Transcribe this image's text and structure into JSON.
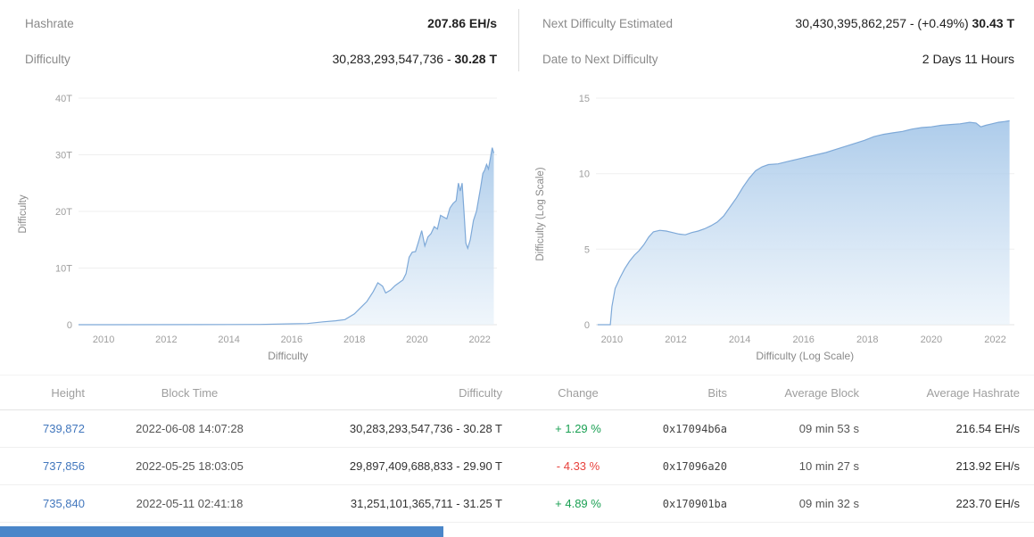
{
  "stats": {
    "hashrate": {
      "label": "Hashrate",
      "value": "207.86 EH/s"
    },
    "difficulty": {
      "label": "Difficulty",
      "value_main": "30,283,293,547,736 - ",
      "value_bold": "30.28 T"
    },
    "next_difficulty": {
      "label": "Next Difficulty Estimated",
      "value_main": "30,430,395,862,257 - (+0.49%) ",
      "value_bold": "30.43 T"
    },
    "date_to_next": {
      "label": "Date to Next Difficulty",
      "value": "2 Days 11 Hours"
    }
  },
  "colors": {
    "link_blue": "#4277bd",
    "positive": "#1aa053",
    "negative": "#e8413c",
    "chart_line": "#7ea9d8",
    "chart_fill_top": "#9fc3e7",
    "chart_fill_bottom": "#e9f2fa",
    "scrollbar_thumb": "#4a86c9"
  },
  "chart_data": [
    {
      "type": "area",
      "title": "",
      "xlabel": "Difficulty",
      "ylabel": "Difficulty",
      "xlim": [
        2009.2,
        2022.55
      ],
      "ylim": [
        0,
        40
      ],
      "x_ticks": [
        2010,
        2012,
        2014,
        2016,
        2018,
        2020,
        2022
      ],
      "y_ticks": [
        {
          "v": 0,
          "label": "0"
        },
        {
          "v": 10,
          "label": "10T"
        },
        {
          "v": 20,
          "label": "20T"
        },
        {
          "v": 30,
          "label": "30T"
        },
        {
          "v": 40,
          "label": "40T"
        }
      ],
      "x": [
        2009.2,
        2013,
        2015,
        2016,
        2016.5,
        2017,
        2017.4,
        2017.7,
        2018.0,
        2018.2,
        2018.4,
        2018.6,
        2018.75,
        2018.9,
        2019.0,
        2019.15,
        2019.3,
        2019.45,
        2019.55,
        2019.65,
        2019.75,
        2019.85,
        2019.95,
        2020.05,
        2020.15,
        2020.25,
        2020.35,
        2020.45,
        2020.55,
        2020.65,
        2020.75,
        2020.85,
        2020.95,
        2021.05,
        2021.15,
        2021.25,
        2021.32,
        2021.38,
        2021.44,
        2021.5,
        2021.56,
        2021.62,
        2021.7,
        2021.8,
        2021.9,
        2021.97,
        2022.03,
        2022.1,
        2022.16,
        2022.22,
        2022.28,
        2022.34,
        2022.4,
        2022.45
      ],
      "y": [
        0,
        0.01,
        0.05,
        0.15,
        0.2,
        0.5,
        0.7,
        0.9,
        1.9,
        3.0,
        4.1,
        5.8,
        7.4,
        6.8,
        5.6,
        6.1,
        6.9,
        7.5,
        7.9,
        9.0,
        11.9,
        12.8,
        12.9,
        14.7,
        16.6,
        13.9,
        15.5,
        16.1,
        17.3,
        16.9,
        19.3,
        19.0,
        18.7,
        20.6,
        21.4,
        21.9,
        25.0,
        23.6,
        25.0,
        19.9,
        14.4,
        13.5,
        15.0,
        18.4,
        20.1,
        22.3,
        24.2,
        26.7,
        27.3,
        28.3,
        27.5,
        29.3,
        31.25,
        30.28
      ]
    },
    {
      "type": "area",
      "title": "",
      "xlabel": "Difficulty (Log Scale)",
      "ylabel": "Difficulty (Log Scale)",
      "xlim": [
        2009.5,
        2022.6
      ],
      "ylim": [
        0,
        15
      ],
      "x_ticks": [
        2010,
        2012,
        2014,
        2016,
        2018,
        2020,
        2022
      ],
      "y_ticks": [
        {
          "v": 0,
          "label": "0"
        },
        {
          "v": 5,
          "label": "5"
        },
        {
          "v": 10,
          "label": "10"
        },
        {
          "v": 15,
          "label": "15"
        }
      ],
      "x": [
        2009.55,
        2009.95,
        2010.0,
        2010.1,
        2010.25,
        2010.4,
        2010.55,
        2010.7,
        2010.85,
        2011.0,
        2011.15,
        2011.3,
        2011.5,
        2011.7,
        2011.9,
        2012.1,
        2012.3,
        2012.5,
        2012.7,
        2012.9,
        2013.1,
        2013.3,
        2013.5,
        2013.7,
        2013.9,
        2014.1,
        2014.3,
        2014.5,
        2014.7,
        2014.9,
        2015.2,
        2015.5,
        2015.8,
        2016.1,
        2016.4,
        2016.7,
        2017.0,
        2017.3,
        2017.6,
        2017.9,
        2018.2,
        2018.5,
        2018.8,
        2019.1,
        2019.4,
        2019.7,
        2020.0,
        2020.3,
        2020.6,
        2020.9,
        2021.2,
        2021.4,
        2021.55,
        2021.7,
        2021.9,
        2022.1,
        2022.3,
        2022.45
      ],
      "y": [
        0,
        0,
        1.2,
        2.4,
        3.1,
        3.7,
        4.2,
        4.6,
        4.9,
        5.3,
        5.8,
        6.15,
        6.25,
        6.2,
        6.1,
        6.0,
        5.95,
        6.1,
        6.2,
        6.35,
        6.55,
        6.8,
        7.2,
        7.8,
        8.4,
        9.1,
        9.7,
        10.2,
        10.45,
        10.6,
        10.65,
        10.8,
        10.95,
        11.1,
        11.25,
        11.4,
        11.6,
        11.8,
        12.0,
        12.2,
        12.45,
        12.6,
        12.7,
        12.8,
        12.95,
        13.05,
        13.1,
        13.2,
        13.25,
        13.3,
        13.4,
        13.35,
        13.1,
        13.2,
        13.3,
        13.4,
        13.45,
        13.5
      ]
    }
  ],
  "table": {
    "headers": [
      "Height",
      "Block Time",
      "Difficulty",
      "Change",
      "Bits",
      "Average Block",
      "Average Hashrate"
    ],
    "rows": [
      {
        "height": "739,872",
        "block_time": "2022-06-08 14:07:28",
        "difficulty": "30,283,293,547,736 - 30.28 T",
        "change": "+ 1.29 %",
        "bits": "0x17094b6a",
        "avg_block": "09 min 53 s",
        "avg_hashrate": "216.54 EH/s"
      },
      {
        "height": "737,856",
        "block_time": "2022-05-25 18:03:05",
        "difficulty": "29,897,409,688,833 - 29.90 T",
        "change": "- 4.33 %",
        "bits": "0x17096a20",
        "avg_block": "10 min 27 s",
        "avg_hashrate": "213.92 EH/s"
      },
      {
        "height": "735,840",
        "block_time": "2022-05-11 02:41:18",
        "difficulty": "31,251,101,365,711 - 31.25 T",
        "change": "+ 4.89 %",
        "bits": "0x170901ba",
        "avg_block": "09 min 32 s",
        "avg_hashrate": "223.70 EH/s"
      }
    ]
  }
}
